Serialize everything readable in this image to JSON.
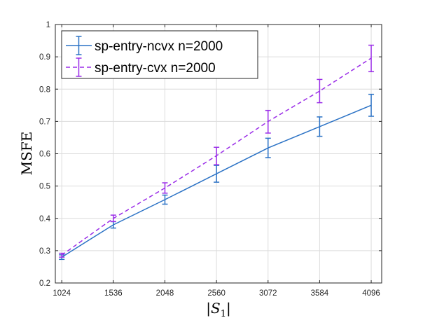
{
  "chart_data": {
    "type": "line",
    "xlabel": "|S1|",
    "ylabel": "MSFE",
    "x": [
      1024,
      1536,
      2048,
      2560,
      3072,
      3584,
      4096
    ],
    "x_tick_labels": [
      "1024",
      "1536",
      "2048",
      "2560",
      "3072",
      "3584",
      "4096"
    ],
    "xlim": [
      960,
      4200
    ],
    "ylim": [
      0.2,
      1.0
    ],
    "y_ticks": [
      0.2,
      0.3,
      0.4,
      0.5,
      0.6,
      0.7,
      0.8,
      0.9,
      1.0
    ],
    "y_tick_labels": [
      "0.2",
      "0.3",
      "0.4",
      "0.5",
      "0.6",
      "0.7",
      "0.8",
      "0.9",
      "1"
    ],
    "grid": true,
    "legend_position": "top-left",
    "series": [
      {
        "name": "sp-entry-ncvx n=2000",
        "color": "#2b72c5",
        "style": "solid",
        "values": [
          0.28,
          0.38,
          0.458,
          0.538,
          0.618,
          0.684,
          0.75
        ],
        "error_low": [
          0.273,
          0.37,
          0.444,
          0.512,
          0.588,
          0.654,
          0.716
        ],
        "error_high": [
          0.287,
          0.39,
          0.472,
          0.564,
          0.648,
          0.714,
          0.784
        ]
      },
      {
        "name": "sp-entry-cvx n=2000",
        "color": "#9b2ee8",
        "style": "dashed",
        "values": [
          0.286,
          0.4,
          0.494,
          0.594,
          0.7,
          0.794,
          0.896
        ],
        "error_low": [
          0.28,
          0.39,
          0.478,
          0.566,
          0.664,
          0.758,
          0.854
        ],
        "error_high": [
          0.292,
          0.41,
          0.51,
          0.62,
          0.734,
          0.83,
          0.936
        ]
      }
    ]
  }
}
